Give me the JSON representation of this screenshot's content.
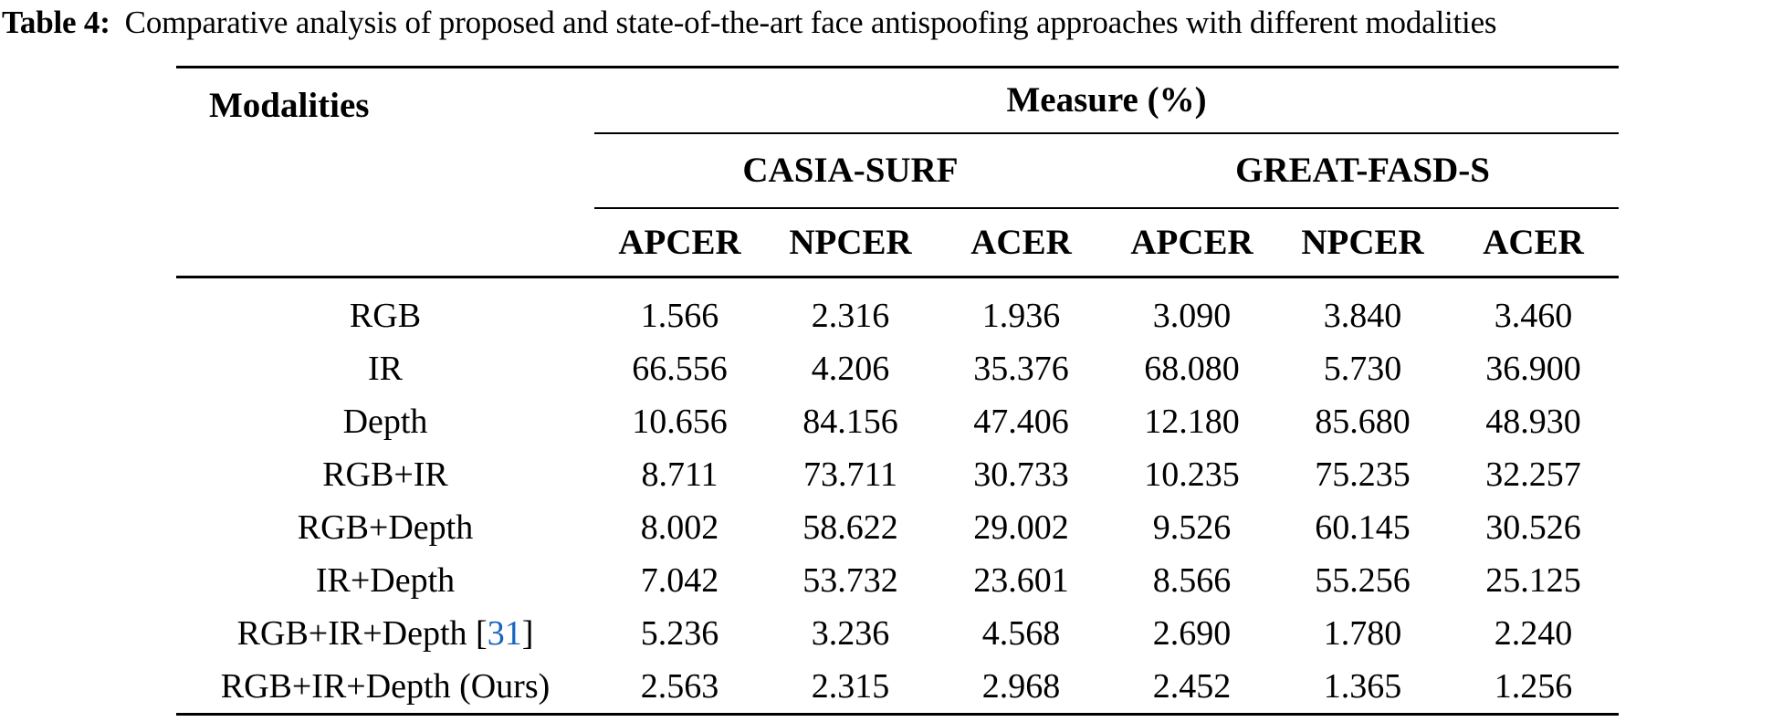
{
  "caption": {
    "label": "Table 4:",
    "text": "Comparative analysis of proposed and state-of-the-art face antispoofing approaches with different modalities"
  },
  "table": {
    "modalities_header": "Modalities",
    "measure_header": "Measure (%)",
    "groups": [
      {
        "label": "CASIA-SURF"
      },
      {
        "label": "GREAT-FASD-S"
      }
    ],
    "metric_headers": [
      "APCER",
      "NPCER",
      "ACER",
      "APCER",
      "NPCER",
      "ACER"
    ],
    "rows": [
      {
        "modality": "RGB",
        "citation": null,
        "values": [
          "1.566",
          "2.316",
          "1.936",
          "3.090",
          "3.840",
          "3.460"
        ]
      },
      {
        "modality": "IR",
        "citation": null,
        "values": [
          "66.556",
          "4.206",
          "35.376",
          "68.080",
          "5.730",
          "36.900"
        ]
      },
      {
        "modality": "Depth",
        "citation": null,
        "values": [
          "10.656",
          "84.156",
          "47.406",
          "12.180",
          "85.680",
          "48.930"
        ]
      },
      {
        "modality": "RGB+IR",
        "citation": null,
        "values": [
          "8.711",
          "73.711",
          "30.733",
          "10.235",
          "75.235",
          "32.257"
        ]
      },
      {
        "modality": "RGB+Depth",
        "citation": null,
        "values": [
          "8.002",
          "58.622",
          "29.002",
          "9.526",
          "60.145",
          "30.526"
        ]
      },
      {
        "modality": "IR+Depth",
        "citation": null,
        "values": [
          "7.042",
          "53.732",
          "23.601",
          "8.566",
          "55.256",
          "25.125"
        ]
      },
      {
        "modality": "RGB+IR+Depth",
        "citation": "31",
        "values": [
          "5.236",
          "3.236",
          "4.568",
          "2.690",
          "1.780",
          "2.240"
        ]
      },
      {
        "modality": "RGB+IR+Depth (Ours)",
        "citation": null,
        "values": [
          "2.563",
          "2.315",
          "2.968",
          "2.452",
          "1.365",
          "1.256"
        ]
      }
    ],
    "colors": {
      "text": "#000000",
      "citation_blue": "#1565c0",
      "background": "#ffffff"
    }
  }
}
